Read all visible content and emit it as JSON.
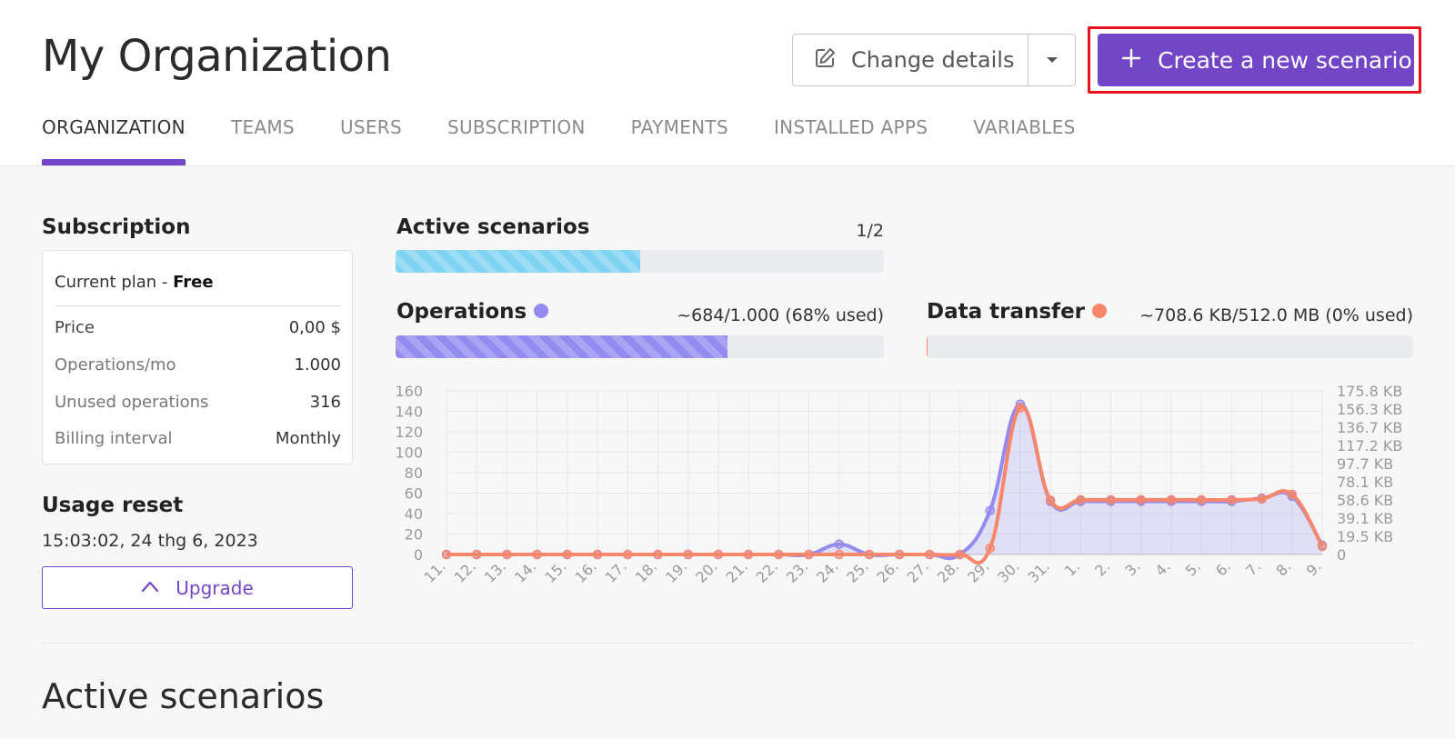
{
  "header": {
    "title": "My Organization",
    "change_details_label": "Change details",
    "create_scenario_label": "Create a new scenario"
  },
  "tabs": [
    {
      "label": "ORGANIZATION",
      "active": true
    },
    {
      "label": "TEAMS",
      "active": false
    },
    {
      "label": "USERS",
      "active": false
    },
    {
      "label": "SUBSCRIPTION",
      "active": false
    },
    {
      "label": "PAYMENTS",
      "active": false
    },
    {
      "label": "INSTALLED APPS",
      "active": false
    },
    {
      "label": "VARIABLES",
      "active": false
    }
  ],
  "subscription": {
    "title": "Subscription",
    "plan_prefix": "Current plan - ",
    "plan_name": "Free",
    "rows": [
      {
        "label": "Price",
        "value": "0,00 $"
      },
      {
        "label": "Operations/mo",
        "value": "1.000"
      },
      {
        "label": "Unused operations",
        "value": "316"
      },
      {
        "label": "Billing interval",
        "value": "Monthly"
      }
    ]
  },
  "usage_reset": {
    "title": "Usage reset",
    "date": "15:03:02, 24 thg 6, 2023",
    "upgrade_label": "Upgrade"
  },
  "active_scenarios": {
    "title": "Active scenarios",
    "value": "1/2",
    "fraction": 0.5
  },
  "operations": {
    "title": "Operations",
    "value": "~684/1.000 (68% used)",
    "fraction": 0.68,
    "color": "#948bf0"
  },
  "data_transfer": {
    "title": "Data transfer",
    "value": "~708.6 KB/512.0 MB (0% used)",
    "fraction": 0.0014,
    "color": "#f7866a"
  },
  "bottom": {
    "title": "Active scenarios"
  },
  "chart_data": {
    "type": "line",
    "categories": [
      "11.",
      "12.",
      "13.",
      "14.",
      "15.",
      "16.",
      "17.",
      "18.",
      "19.",
      "20.",
      "21.",
      "22.",
      "23.",
      "24.",
      "25.",
      "26.",
      "27.",
      "28.",
      "29.",
      "30.",
      "31.",
      "1.",
      "2.",
      "3.",
      "4.",
      "5.",
      "6.",
      "7.",
      "8.",
      "9."
    ],
    "y_ticks": [
      "0",
      "20",
      "40",
      "60",
      "80",
      "100",
      "120",
      "140",
      "160"
    ],
    "y2_ticks": [
      "0",
      "19.5 KB",
      "39.1 KB",
      "58.6 KB",
      "78.1 KB",
      "97.7 KB",
      "117.2 KB",
      "136.7 KB",
      "156.3 KB",
      "175.8 KB"
    ],
    "ylim": [
      0,
      160
    ],
    "y2lim": [
      0,
      175.8
    ],
    "grid": true,
    "series": [
      {
        "name": "Operations",
        "color": "#948bf0",
        "axis": "left",
        "fill": true,
        "values": [
          0,
          0,
          0,
          0,
          0,
          0,
          0,
          0,
          0,
          0,
          0,
          0,
          0,
          10,
          0,
          0,
          0,
          0,
          43,
          147,
          52,
          52,
          52,
          52,
          52,
          52,
          52,
          55,
          57,
          9
        ]
      },
      {
        "name": "Data transfer",
        "color": "#f7866a",
        "axis": "right",
        "fill": false,
        "values": [
          0,
          0,
          0,
          0,
          0,
          0,
          0,
          0,
          0,
          0,
          0,
          0,
          0,
          0,
          0,
          0,
          0,
          0,
          6.6,
          157.7,
          58.4,
          58.7,
          58.7,
          58.7,
          58.7,
          58.7,
          58.7,
          59.7,
          64.6,
          8.8
        ]
      }
    ]
  }
}
